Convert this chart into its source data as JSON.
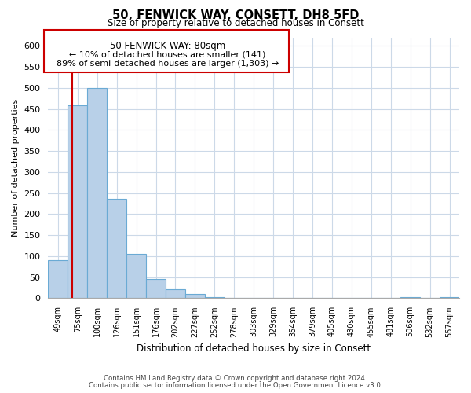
{
  "title": "50, FENWICK WAY, CONSETT, DH8 5FD",
  "subtitle": "Size of property relative to detached houses in Consett",
  "xlabel": "Distribution of detached houses by size in Consett",
  "ylabel": "Number of detached properties",
  "bar_labels": [
    "49sqm",
    "75sqm",
    "100sqm",
    "126sqm",
    "151sqm",
    "176sqm",
    "202sqm",
    "227sqm",
    "252sqm",
    "278sqm",
    "303sqm",
    "329sqm",
    "354sqm",
    "379sqm",
    "405sqm",
    "430sqm",
    "455sqm",
    "481sqm",
    "506sqm",
    "532sqm",
    "557sqm"
  ],
  "bar_values": [
    90,
    458,
    500,
    236,
    105,
    46,
    21,
    10,
    2,
    0,
    0,
    0,
    0,
    0,
    0,
    0,
    0,
    0,
    2,
    0,
    2
  ],
  "bar_color": "#b8d0e8",
  "bar_edge_color": "#6aaad4",
  "ylim": [
    0,
    620
  ],
  "yticks": [
    0,
    50,
    100,
    150,
    200,
    250,
    300,
    350,
    400,
    450,
    500,
    550,
    600
  ],
  "vline_x": 0.72,
  "vline_color": "#cc0000",
  "annotation_title": "50 FENWICK WAY: 80sqm",
  "annotation_line1": "← 10% of detached houses are smaller (141)",
  "annotation_line2": "89% of semi-detached houses are larger (1,303) →",
  "footer_line1": "Contains HM Land Registry data © Crown copyright and database right 2024.",
  "footer_line2": "Contains public sector information licensed under the Open Government Licence v3.0.",
  "background_color": "#ffffff",
  "grid_color": "#ccd9e8"
}
